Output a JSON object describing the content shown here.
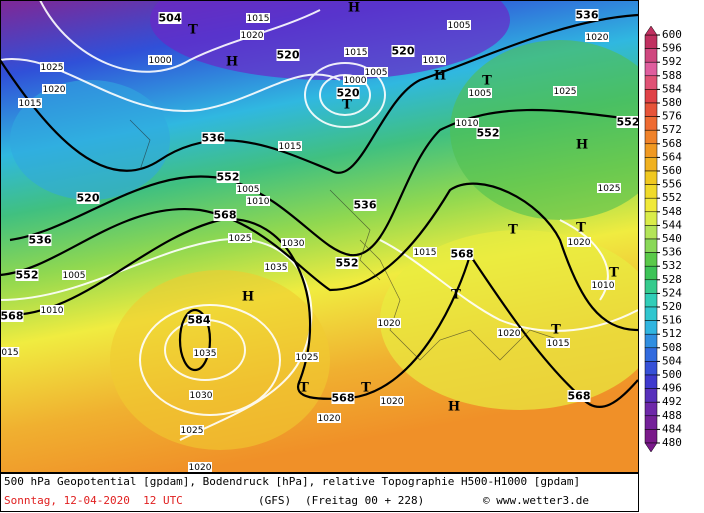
{
  "map_labels": [
    "504",
    "T",
    "1015",
    "1020",
    "H",
    "1000",
    "520",
    "1025",
    "1020",
    "1015",
    "H",
    "1015",
    "1005",
    "520",
    "1010",
    "1005",
    "1000",
    "520",
    "T",
    "H",
    "T",
    "1005",
    "536",
    "1020",
    "1025",
    "552",
    "H",
    "1010",
    "552",
    "536",
    "1015",
    "520",
    "552",
    "1005",
    "1010",
    "568",
    "1025",
    "1030",
    "1035",
    "552",
    "536",
    "536",
    "552",
    "1005",
    "568",
    "1010",
    "H",
    "584",
    "1035",
    "1030",
    "1025",
    "1020",
    "1025",
    "T",
    "T",
    "568",
    "1020",
    "1020",
    "H",
    "568",
    "T",
    "1015",
    "1020",
    "T",
    "T",
    "1010",
    "T",
    "1020",
    "1020",
    "T",
    "1015",
    "568",
    "015",
    "1025"
  ],
  "colorbar": {
    "ticks": [
      600,
      596,
      592,
      588,
      584,
      580,
      576,
      572,
      568,
      564,
      560,
      556,
      552,
      548,
      544,
      540,
      536,
      532,
      528,
      524,
      520,
      516,
      512,
      508,
      504,
      500,
      496,
      492,
      488,
      484,
      480
    ]
  },
  "footer": {
    "description": "500 hPa Geopotential [gpdam], Bodendruck [hPa], relative Topographie H500-H1000 [gpdam]",
    "date": "Sonntag, 12-04-2020  12 UTC",
    "model": "(GFS)",
    "run": "(Freitag 00 + 228)",
    "credit": "© www.wetter3.de"
  }
}
